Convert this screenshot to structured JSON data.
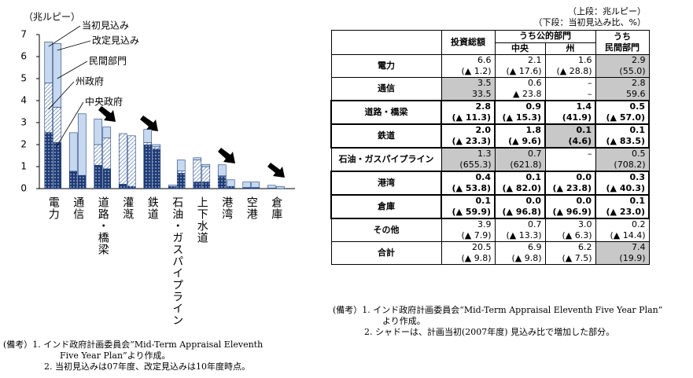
{
  "chart_data": {
    "type": "bar",
    "stacked": true,
    "y_unit_label": "（兆ルピー）",
    "bar_labels": [
      "当初見込み",
      "改定見込み"
    ],
    "categories": [
      "電力",
      "通信",
      "道路・橋梁",
      "灌漑",
      "鉄道",
      "石油・ガスパイプライン",
      "上下水道",
      "港湾",
      "空港",
      "倉庫"
    ],
    "series": [
      {
        "name": "中央政府",
        "color": "#1f3c78",
        "pattern": "dots",
        "initial": [
          2.55,
          0.79,
          1.06,
          0.2,
          1.99,
          0.1,
          0.3,
          0.55,
          0.05,
          0.02
        ],
        "revised": [
          2.1,
          0.6,
          0.9,
          0.1,
          1.8,
          0.7,
          0.3,
          0.1,
          0.05,
          0.0
        ]
      },
      {
        "name": "州政府",
        "color": "#7f9cc7",
        "pattern": "hatch",
        "initial": [
          2.25,
          0.0,
          0.94,
          2.3,
          0.1,
          0.0,
          1.0,
          0.03,
          0.0,
          0.0
        ],
        "revised": [
          1.6,
          0.0,
          1.4,
          2.3,
          0.1,
          0.1,
          0.7,
          0.0,
          0.0,
          0.0
        ]
      },
      {
        "name": "民間部門",
        "color": "#c6d9f0",
        "pattern": "solid",
        "initial": [
          1.87,
          1.75,
          1.16,
          0.0,
          0.6,
          0.06,
          0.1,
          0.5,
          0.25,
          0.13
        ],
        "revised": [
          2.9,
          2.8,
          0.5,
          0.0,
          0.1,
          0.5,
          0.1,
          0.3,
          0.25,
          0.1
        ]
      }
    ],
    "ylim": [
      0,
      7
    ],
    "yticks": [
      0,
      1,
      2,
      3,
      4,
      5,
      6,
      7
    ],
    "notes": [
      "(備考）1. インド政府計画委員会“Mid-Term Appraisal Eleventh",
      "Five Year Plan”より作成。",
      "2. 当初見込みは07年度、改定見込みは10年度時点。"
    ]
  },
  "table": {
    "units": [
      "（上段：兆ルピー）",
      "（下段：当初見込み比、%）"
    ],
    "headers": {
      "total": "投資総額",
      "public": "うち公的部門",
      "central": "中央",
      "state": "州",
      "private": [
        "うち",
        "民間部門"
      ]
    },
    "rows": [
      {
        "label": "電力",
        "top": [
          "6.6",
          "2.1",
          "1.6",
          "2.9"
        ],
        "bottom": [
          "(▲ 1.2)",
          "(▲ 17.6)",
          "(▲ 28.8)",
          "(55.0)"
        ],
        "shaded": [
          false,
          false,
          false,
          true
        ],
        "bold": false
      },
      {
        "label": "通信",
        "top": [
          "3.5",
          "0.6",
          "–",
          "2.8"
        ],
        "bottom": [
          "33.5",
          "▲ 23.8",
          "–",
          "59.6"
        ],
        "shaded": [
          true,
          false,
          false,
          true
        ],
        "bold": false
      },
      {
        "label": "道路・橋梁",
        "top": [
          "2.8",
          "0.9",
          "1.4",
          "0.5"
        ],
        "bottom": [
          "(▲ 11.3)",
          "(▲ 15.3)",
          "(41.9)",
          "(▲ 57.0)"
        ],
        "shaded": [
          false,
          false,
          false,
          false
        ],
        "bold": true
      },
      {
        "label": "鉄道",
        "top": [
          "2.0",
          "1.8",
          "0.1",
          "0.1"
        ],
        "bottom": [
          "(▲ 23.3)",
          "(▲ 9.6)",
          "(4.6)",
          "(▲ 83.5)"
        ],
        "shaded": [
          false,
          false,
          true,
          false
        ],
        "bold": true
      },
      {
        "label": "石油・ガスパイプライン",
        "top": [
          "1.3",
          "0.7",
          "–",
          "0.5"
        ],
        "bottom": [
          "(655.3)",
          "(621.8)",
          null,
          "(708.2)"
        ],
        "shaded": [
          true,
          true,
          false,
          true
        ],
        "bold": false
      },
      {
        "label": "港湾",
        "top": [
          "0.4",
          "0.1",
          "0.0",
          "0.3"
        ],
        "bottom": [
          "(▲ 53.8)",
          "(▲ 82.0)",
          "(▲ 23.8)",
          "(▲ 40.3)"
        ],
        "shaded": [
          false,
          false,
          false,
          false
        ],
        "bold": true
      },
      {
        "label": "倉庫",
        "top": [
          "0.1",
          "0.0",
          "0.0",
          "0.1"
        ],
        "bottom": [
          "(▲ 59.9)",
          "(▲ 96.8)",
          "(▲ 96.9)",
          "(▲ 23.0)"
        ],
        "shaded": [
          false,
          false,
          false,
          false
        ],
        "bold": true
      },
      {
        "label": "その他",
        "top": [
          "3.9",
          "0.7",
          "3.0",
          "0.2"
        ],
        "bottom": [
          "(▲ 7.9)",
          "(▲ 13.3)",
          "(▲ 6.3)",
          "(▲ 14.4)"
        ],
        "shaded": [
          false,
          false,
          false,
          false
        ],
        "bold": false
      },
      {
        "label": "合計",
        "top": [
          "20.5",
          "6.9",
          "6.2",
          "7.4"
        ],
        "bottom": [
          "(▲ 9.8)",
          "(▲ 9.8)",
          "(▲ 7.5)",
          "(19.9)"
        ],
        "shaded": [
          false,
          false,
          false,
          true
        ],
        "bold": false
      }
    ],
    "notes": [
      "(備考）1. インド政府計画委員会“Mid-Term Appraisal Eleventh Five Year Plan”",
      "より作成。",
      "2. シャドーは、計画当初(2007年度) 見込み比で増加した部分。"
    ]
  }
}
